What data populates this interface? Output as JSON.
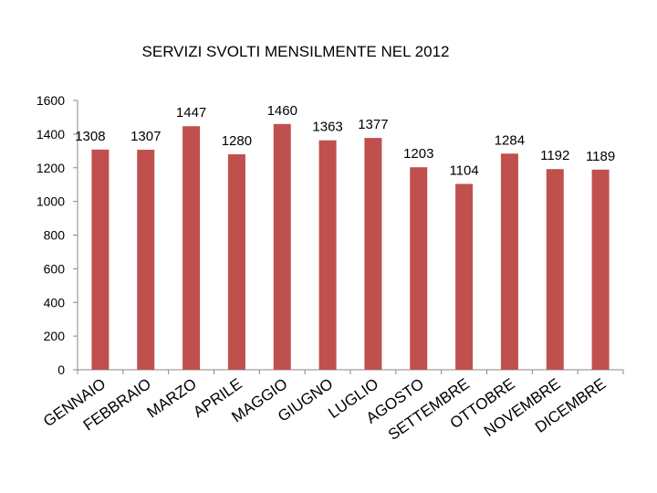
{
  "chart_data": {
    "type": "bar",
    "title": "SERVIZI SVOLTI MENSILMENTE NEL 2012",
    "xlabel": "",
    "ylabel": "",
    "ylim": [
      0,
      1600
    ],
    "yticks": [
      0,
      200,
      400,
      600,
      800,
      1000,
      1200,
      1400,
      1600
    ],
    "grid": false,
    "legend": "none",
    "bar_color": "#c0504d",
    "categories": [
      "GENNAIO",
      "FEBBRAIO",
      "MARZO",
      "APRILE",
      "MAGGIO",
      "GIUGNO",
      "LUGLIO",
      "AGOSTO",
      "SETTEMBRE",
      "OTTOBRE",
      "NOVEMBRE",
      "DICEMBRE"
    ],
    "values": [
      1308,
      1307,
      1447,
      1280,
      1460,
      1363,
      1377,
      1203,
      1104,
      1284,
      1192,
      1189
    ]
  }
}
